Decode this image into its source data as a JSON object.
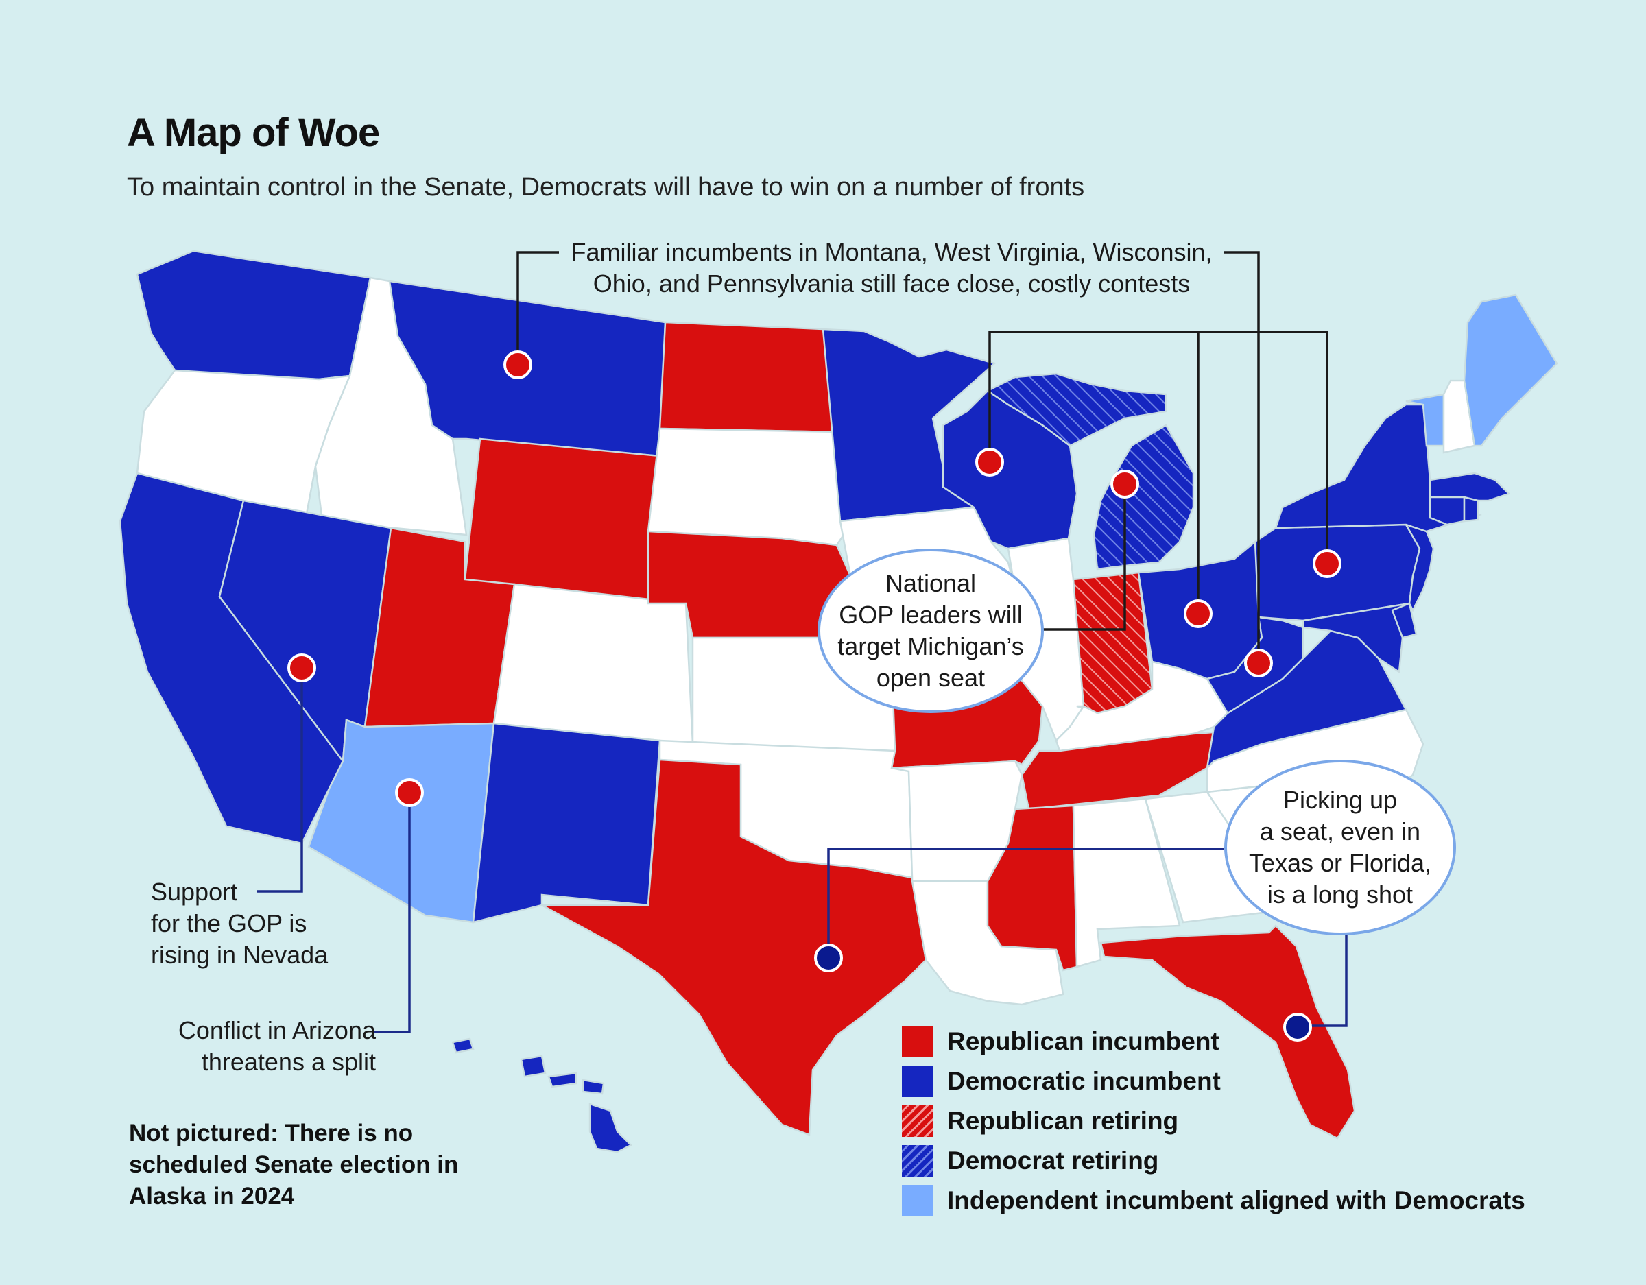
{
  "title": "A Map of Woe",
  "subtitle": "To maintain control in the Senate, Democrats will have to win on a number of fronts",
  "annotations": {
    "familiar": [
      "Familiar incumbents in Montana, West Virginia, Wisconsin,",
      "Ohio, and Pennsylvania still face close, costly contests"
    ],
    "nevada": [
      "Support",
      "for the GOP is",
      "rising in Nevada"
    ],
    "arizona": [
      "Conflict in Arizona",
      "threatens a split"
    ],
    "michigan": [
      "National",
      "GOP leaders will",
      "target Michigan’s",
      "open seat"
    ],
    "texas_florida": [
      "Picking up",
      "a seat, even in",
      "Texas or Florida,",
      "is a long shot"
    ]
  },
  "note": "Not pictured: There is no scheduled Senate election in Alaska in 2024",
  "colors": {
    "background": "#d6eef0",
    "republican": "#d80f0f",
    "democratic": "#1526c0",
    "independent": "#79acff",
    "no_election": "#ffffff",
    "border": "#c9dde0"
  },
  "legend": [
    {
      "label": "Republican incumbent",
      "style": "republican"
    },
    {
      "label": "Democratic incumbent",
      "style": "democratic"
    },
    {
      "label": "Republican retiring",
      "style": "republican-retiring"
    },
    {
      "label": "Democrat retiring",
      "style": "democrat-retiring"
    },
    {
      "label": "Independent incumbent aligned with Democrats",
      "style": "independent"
    }
  ],
  "states": {
    "WA": "democratic",
    "OR": "none",
    "CA": "democratic",
    "ID": "none",
    "NV": "democratic",
    "MT": "democratic",
    "WY": "republican",
    "UT": "republican",
    "AZ": "independent",
    "CO": "none",
    "NM": "democratic",
    "ND": "republican",
    "SD": "none",
    "NE": "republican",
    "KS": "none",
    "OK": "none",
    "TX": "republican",
    "MN": "democratic",
    "IA": "none",
    "MO": "republican",
    "AR": "none",
    "LA": "none",
    "WI": "democratic",
    "IL": "none",
    "MI": "democrat-retiring",
    "IN": "republican-retiring",
    "OH": "democratic",
    "KY": "none",
    "TN": "republican",
    "MS": "republican",
    "AL": "none",
    "GA": "none",
    "FL": "republican",
    "SC": "none",
    "NC": "none",
    "VA": "democratic",
    "WV": "democratic",
    "MD": "democratic",
    "DE": "democratic",
    "NJ": "democratic",
    "PA": "democratic",
    "NY": "democratic",
    "CT": "democratic",
    "RI": "democratic",
    "MA": "democratic",
    "VT": "independent",
    "NH": "none",
    "ME": "independent",
    "HI": "democratic"
  },
  "markers": [
    {
      "state": "MT",
      "party": "republican"
    },
    {
      "state": "WI",
      "party": "republican"
    },
    {
      "state": "MI",
      "party": "republican"
    },
    {
      "state": "OH",
      "party": "republican"
    },
    {
      "state": "WV",
      "party": "republican"
    },
    {
      "state": "PA",
      "party": "republican"
    },
    {
      "state": "NV",
      "party": "republican"
    },
    {
      "state": "AZ",
      "party": "republican"
    },
    {
      "state": "TX",
      "party": "democratic"
    },
    {
      "state": "FL",
      "party": "democratic"
    }
  ]
}
